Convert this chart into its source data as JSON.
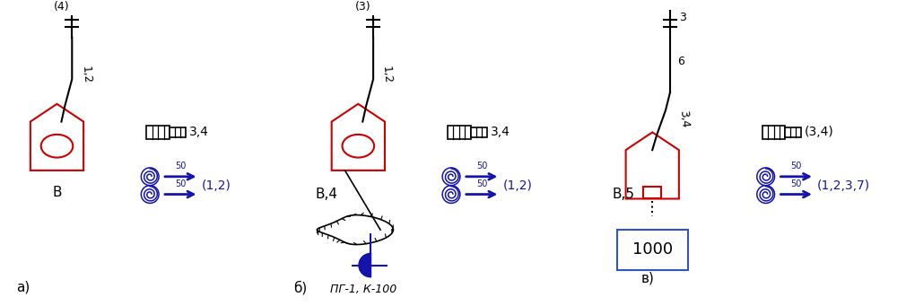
{
  "bg_color": "#ffffff",
  "fig_w": 10.1,
  "fig_h": 3.41,
  "dpi": 100,
  "red": "#cc0000",
  "blue": "#1414aa",
  "black": "#000000",
  "sections": [
    {
      "label_bottom": "а)",
      "nozzle_label": "(4)",
      "hose_label": "1,2",
      "truck_label": "B",
      "reel_label": "(1,2)",
      "coupling_label": "3,4",
      "has_hydrant": false,
      "has_tank": false,
      "nozzle_parens": true,
      "extra_labels": []
    },
    {
      "label_bottom": "б)",
      "nozzle_label": "(3)",
      "hose_label": "1,2",
      "truck_label": "B,4",
      "reel_label": "(1,2)",
      "coupling_label": "3,4",
      "has_hydrant": true,
      "hydrant_label": "ПГ-1, К-100",
      "has_tank": false,
      "nozzle_parens": true,
      "extra_labels": []
    },
    {
      "label_bottom": "в)",
      "nozzle_label": "3",
      "hose_label": "3,4",
      "truck_label": "B,5",
      "reel_label": "(1,2,3,7)",
      "coupling_label": "(3,4)",
      "has_hydrant": false,
      "has_tank": true,
      "tank_value": "1000",
      "nozzle_parens": false,
      "hose_label2": "6",
      "extra_labels": []
    }
  ]
}
